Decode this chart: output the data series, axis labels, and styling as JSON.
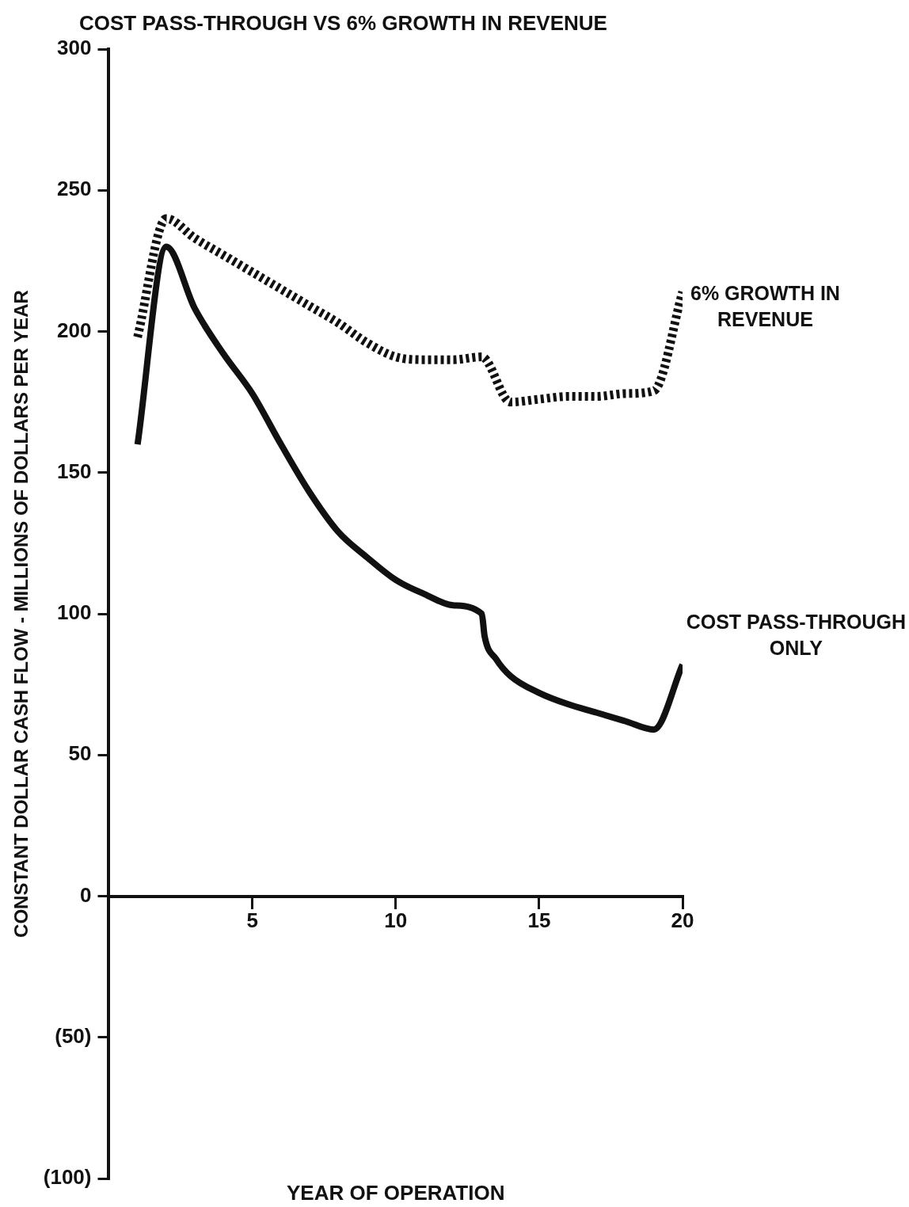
{
  "chart_data": {
    "type": "line",
    "title": "COST PASS-THROUGH VS 6% GROWTH IN REVENUE",
    "xlabel": "YEAR OF OPERATION",
    "ylabel": "CONSTANT DOLLAR CASH FLOW - MILLIONS OF DOLLARS PER YEAR",
    "xlim": [
      0,
      20
    ],
    "xticks": [
      5,
      10,
      15,
      20
    ],
    "ylim": [
      -100,
      300
    ],
    "yticks": [
      {
        "value": -100,
        "label": "(100)"
      },
      {
        "value": -50,
        "label": "(50)"
      },
      0,
      50,
      100,
      150,
      200,
      250,
      300
    ],
    "grid": false,
    "legend": false,
    "marker": "none",
    "series": [
      {
        "name": "6% GROWTH IN REVENUE",
        "color": "#111111",
        "line_style": "dotted",
        "x": [
          1,
          2,
          3,
          4,
          5,
          6,
          7,
          8,
          9,
          10,
          11,
          12,
          13,
          14,
          15,
          16,
          17,
          18,
          19,
          20
        ],
        "values": [
          198,
          240,
          233,
          227,
          221,
          215,
          209,
          203,
          196,
          191,
          190,
          190,
          191,
          175,
          176,
          177,
          177,
          178,
          179,
          214
        ]
      },
      {
        "name": "COST PASS-THROUGH ONLY",
        "color": "#111111",
        "line_style": "solid",
        "x": [
          1,
          2,
          3,
          4,
          5,
          6,
          7,
          8,
          9,
          10,
          11,
          12,
          13,
          13.1,
          13.5,
          14,
          15,
          16,
          17,
          18,
          19,
          20
        ],
        "values": [
          160,
          230,
          208,
          192,
          178,
          160,
          143,
          129,
          120,
          112,
          107,
          103,
          100,
          92,
          84,
          78,
          72,
          68,
          65,
          62,
          59,
          82
        ]
      }
    ]
  }
}
